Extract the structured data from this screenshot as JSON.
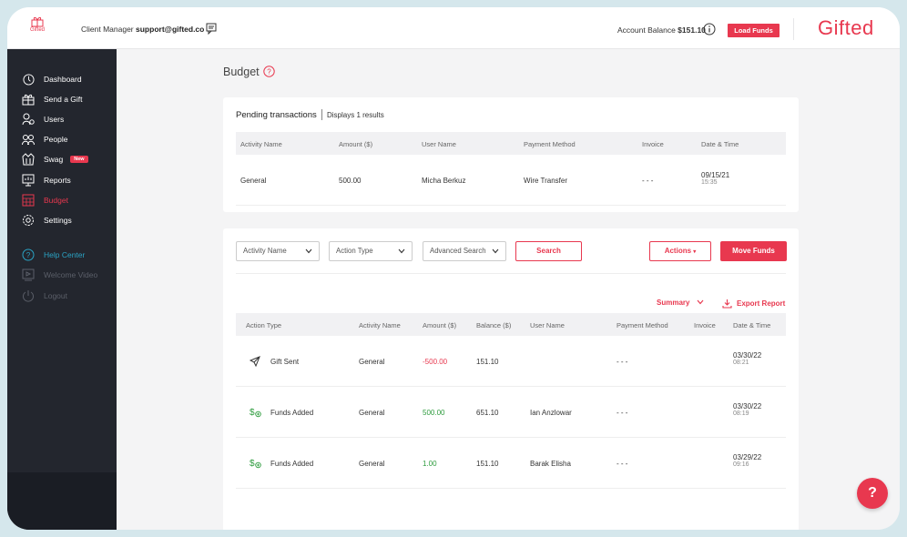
{
  "header": {
    "logo_small_text": "Gifted",
    "client_manager_label": "Client Manager",
    "client_manager_email": "support@gifted.co",
    "account_balance_label": "Account Balance",
    "account_balance_value": "$151.10",
    "load_funds_label": "Load Funds",
    "brand": "Gifted"
  },
  "sidebar": {
    "items": [
      {
        "label": "Dashboard",
        "icon": "dashboard-icon"
      },
      {
        "label": "Send a Gift",
        "icon": "gift-icon"
      },
      {
        "label": "Users",
        "icon": "users-icon"
      },
      {
        "label": "People",
        "icon": "people-icon"
      },
      {
        "label": "Swag",
        "icon": "swag-icon",
        "badge": "New"
      },
      {
        "label": "Reports",
        "icon": "reports-icon"
      },
      {
        "label": "Budget",
        "icon": "budget-icon",
        "active": true
      },
      {
        "label": "Settings",
        "icon": "settings-icon"
      }
    ],
    "secondary": [
      {
        "label": "Help Center",
        "icon": "help-icon"
      },
      {
        "label": "Welcome Video",
        "icon": "video-icon"
      },
      {
        "label": "Logout",
        "icon": "logout-icon"
      }
    ]
  },
  "page": {
    "title": "Budget"
  },
  "pending": {
    "title": "Pending transactions",
    "count_text": "Displays 1 results",
    "columns": [
      "Activity Name",
      "Amount ($)",
      "User Name",
      "Payment Method",
      "Invoice",
      "Date & Time"
    ],
    "rows": [
      {
        "activity": "General",
        "amount": "500.00",
        "user": "Micha Berkuz",
        "method": "Wire Transfer",
        "invoice": "- - -",
        "date": "09/15/21",
        "time": "15:35"
      }
    ]
  },
  "filters": {
    "activity_name": "Activity Name",
    "action_type": "Action Type",
    "advanced_search": "Advanced Search",
    "search_label": "Search",
    "actions_label": "Actions",
    "move_funds_label": "Move Funds",
    "summary_label": "Summary",
    "export_label": "Export Report"
  },
  "transactions": {
    "columns": [
      "Action Type",
      "Activity Name",
      "Amount ($)",
      "Balance ($)",
      "User Name",
      "Payment Method",
      "Invoice",
      "Date & Time"
    ],
    "rows": [
      {
        "type": "Gift Sent",
        "type_icon": "send-icon",
        "activity": "General",
        "amount": "-500.00",
        "sign": "neg",
        "balance": "151.10",
        "user": "",
        "method": "- - -",
        "date": "03/30/22",
        "time": "08:21"
      },
      {
        "type": "Funds Added",
        "type_icon": "funds-icon",
        "activity": "General",
        "amount": "500.00",
        "sign": "pos",
        "balance": "651.10",
        "user": "Ian Anzlowar",
        "method": "- - -",
        "date": "03/30/22",
        "time": "08:19"
      },
      {
        "type": "Funds Added",
        "type_icon": "funds-icon",
        "activity": "General",
        "amount": "1.00",
        "sign": "pos",
        "balance": "151.10",
        "user": "Barak Elisha",
        "method": "- - -",
        "date": "03/29/22",
        "time": "09:16"
      }
    ]
  },
  "fab_label": "?",
  "colors": {
    "accent": "#e8384f",
    "sidebar": "#23262e",
    "help": "#2aa3c4",
    "positive": "#2d9b3d"
  }
}
